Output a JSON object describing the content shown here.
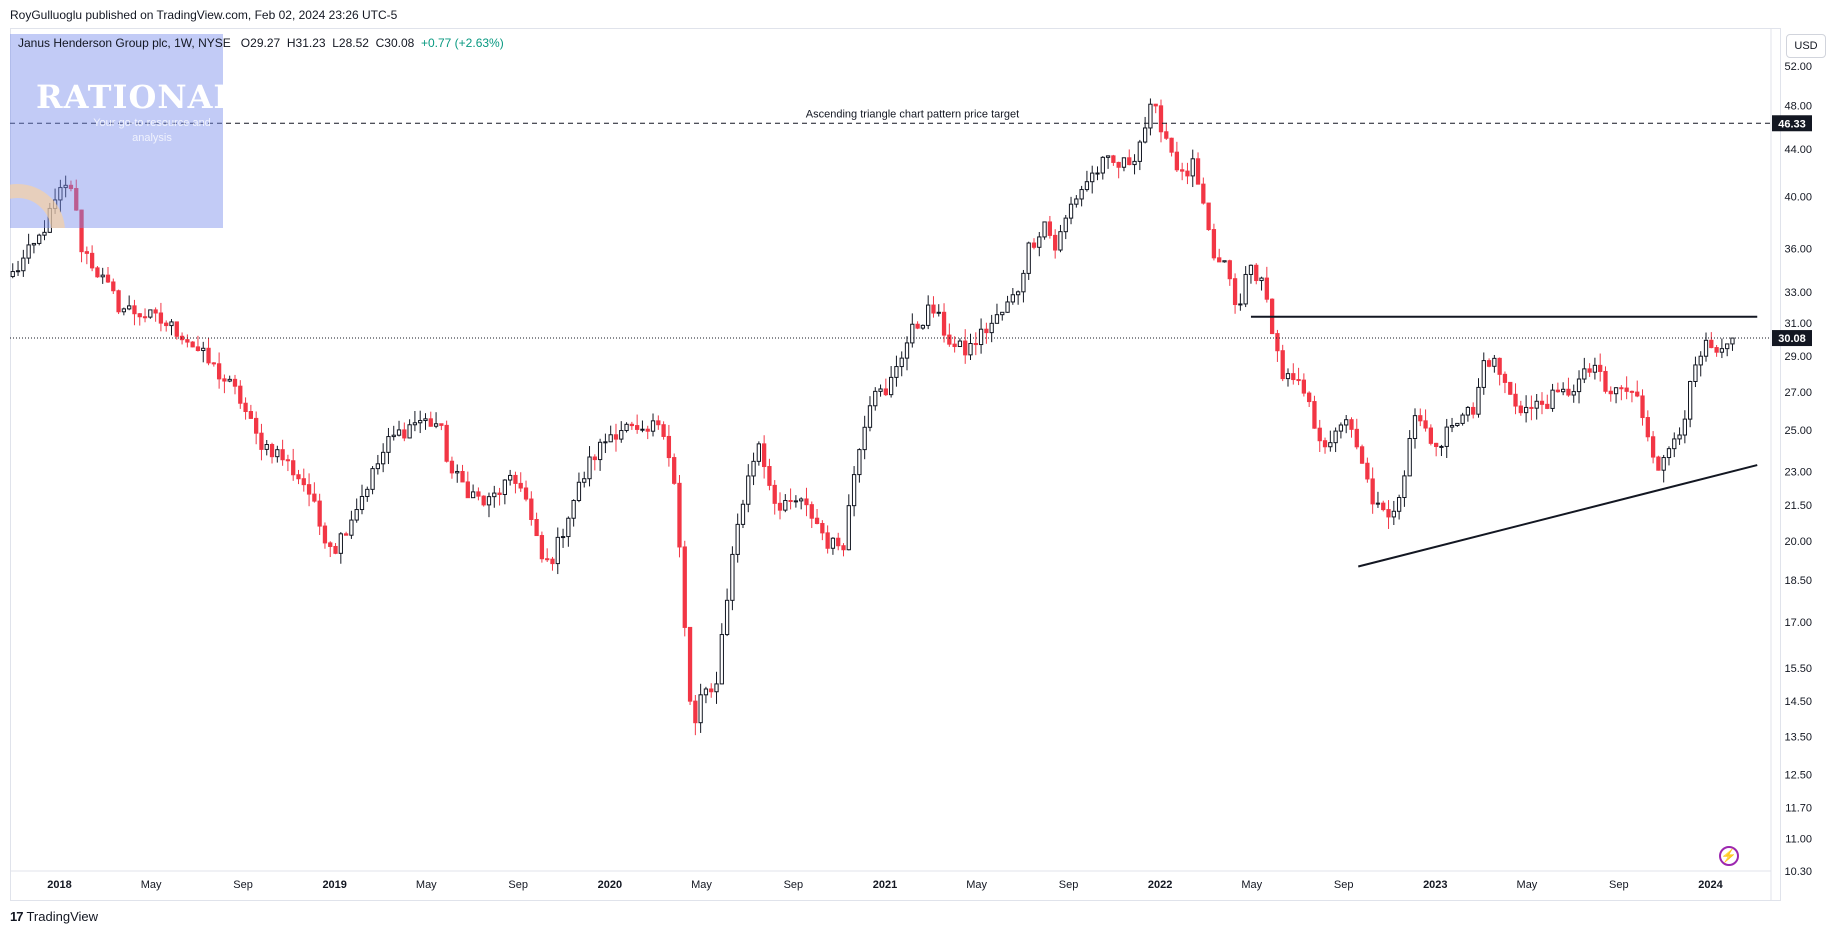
{
  "header": {
    "publisher": "RoyGulluoglu published on TradingView.com, Feb 02, 2024 23:26 UTC-5",
    "symbol": "Janus Henderson Group plc, 1W, NYSE",
    "open_label": "O",
    "open": "29.27",
    "high_label": "H",
    "high": "31.23",
    "low_label": "L",
    "low": "28.52",
    "close_label": "C",
    "close": "30.08",
    "change": "+0.77 (+2.63%)"
  },
  "currency": "USD",
  "logo": {
    "title": "RATIONALE",
    "tagline": "Your go-to resource and analysis"
  },
  "footer": {
    "brand": "TradingView",
    "brand_icon": "tv-logo-icon"
  },
  "colors": {
    "up": "#089981",
    "down": "#f23645",
    "candle_up_body": "#131722",
    "line": "#131722"
  },
  "chart_data": {
    "type": "candlestick",
    "title": "",
    "scale": "log",
    "ylim": [
      10.3,
      56
    ],
    "y_ticks": [
      52,
      48,
      44,
      40,
      36,
      33,
      31,
      29,
      27,
      25,
      23,
      21.5,
      20,
      18.5,
      17,
      15.5,
      14.5,
      13.5,
      12.5,
      11.7,
      11,
      10.3
    ],
    "y_tick_labels": [
      "52.00",
      "48.00",
      "44.00",
      "40.00",
      "36.00",
      "33.00",
      "31.00",
      "29.00",
      "27.00",
      "25.00",
      "23.00",
      "21.50",
      "20.00",
      "18.50",
      "17.00",
      "15.50",
      "14.50",
      "13.50",
      "12.50",
      "11.70",
      "11.00",
      "10.30"
    ],
    "x_ticks": [
      "2018",
      "May",
      "Sep",
      "2019",
      "May",
      "Sep",
      "2020",
      "May",
      "Sep",
      "2021",
      "May",
      "Sep",
      "2022",
      "May",
      "Sep",
      "2023",
      "May",
      "Sep",
      "2024"
    ],
    "x_tick_bold": [
      true,
      false,
      false,
      true,
      false,
      false,
      true,
      false,
      false,
      true,
      false,
      false,
      true,
      false,
      false,
      true,
      false,
      false,
      true
    ],
    "x_tick_t": [
      0.0,
      0.333,
      0.667,
      1.0,
      1.333,
      1.667,
      2.0,
      2.333,
      2.667,
      3.0,
      3.333,
      3.667,
      4.0,
      4.333,
      4.667,
      5.0,
      5.333,
      5.667,
      6.0
    ],
    "x_range_years": [
      -0.18,
      6.22
    ],
    "current_price": 30.08,
    "current_price_label": "30.08",
    "target_price": 46.33,
    "target_price_label": "46.33",
    "annotation": "Ascending triangle chart pattern price target",
    "resistance_line": {
      "t_start": 4.33,
      "t_end": 6.17,
      "price": 31.4
    },
    "support_line": {
      "t_start": 4.72,
      "price_start": 19.0,
      "t_end": 6.17,
      "price_end": 23.3
    },
    "price_path": [
      [
        -0.17,
        34.2
      ],
      [
        -0.08,
        36.5
      ],
      [
        0.0,
        40.2
      ],
      [
        0.05,
        41.0
      ],
      [
        0.07,
        36.5
      ],
      [
        0.15,
        34.0
      ],
      [
        0.22,
        32.0
      ],
      [
        0.3,
        31.6
      ],
      [
        0.38,
        31.0
      ],
      [
        0.45,
        30.3
      ],
      [
        0.55,
        28.5
      ],
      [
        0.65,
        26.8
      ],
      [
        0.72,
        24.5
      ],
      [
        0.8,
        23.8
      ],
      [
        0.9,
        22.3
      ],
      [
        0.95,
        20.5
      ],
      [
        1.0,
        19.7
      ],
      [
        1.06,
        21.0
      ],
      [
        1.13,
        22.7
      ],
      [
        1.2,
        24.5
      ],
      [
        1.3,
        25.5
      ],
      [
        1.38,
        25.3
      ],
      [
        1.42,
        23.0
      ],
      [
        1.5,
        22.0
      ],
      [
        1.55,
        21.5
      ],
      [
        1.62,
        22.4
      ],
      [
        1.68,
        22.5
      ],
      [
        1.72,
        20.5
      ],
      [
        1.76,
        19.0
      ],
      [
        1.8,
        19.5
      ],
      [
        1.86,
        21.5
      ],
      [
        1.93,
        23.5
      ],
      [
        2.0,
        24.8
      ],
      [
        2.05,
        25.2
      ],
      [
        2.12,
        24.6
      ],
      [
        2.18,
        25.5
      ],
      [
        2.2,
        25.0
      ],
      [
        2.24,
        22.0
      ],
      [
        2.27,
        17.0
      ],
      [
        2.3,
        13.5
      ],
      [
        2.33,
        14.6
      ],
      [
        2.38,
        14.7
      ],
      [
        2.42,
        17.5
      ],
      [
        2.46,
        20.5
      ],
      [
        2.5,
        22.5
      ],
      [
        2.54,
        24.5
      ],
      [
        2.58,
        22.5
      ],
      [
        2.62,
        21.2
      ],
      [
        2.68,
        21.7
      ],
      [
        2.74,
        21.0
      ],
      [
        2.8,
        19.8
      ],
      [
        2.85,
        20.0
      ],
      [
        2.9,
        24.0
      ],
      [
        2.96,
        27.5
      ],
      [
        3.0,
        26.5
      ],
      [
        3.04,
        28.5
      ],
      [
        3.1,
        30.5
      ],
      [
        3.17,
        32.0
      ],
      [
        3.2,
        31.0
      ],
      [
        3.25,
        29.5
      ],
      [
        3.3,
        29.3
      ],
      [
        3.36,
        30.5
      ],
      [
        3.42,
        31.5
      ],
      [
        3.48,
        33.0
      ],
      [
        3.52,
        36.0
      ],
      [
        3.58,
        38.0
      ],
      [
        3.62,
        36.0
      ],
      [
        3.68,
        39.5
      ],
      [
        3.74,
        41.5
      ],
      [
        3.8,
        42.8
      ],
      [
        3.86,
        42.5
      ],
      [
        3.9,
        43.2
      ],
      [
        3.93,
        45.0
      ],
      [
        3.97,
        47.8
      ],
      [
        4.0,
        46.5
      ],
      [
        4.04,
        44.0
      ],
      [
        4.08,
        41.5
      ],
      [
        4.12,
        42.5
      ],
      [
        4.16,
        38.5
      ],
      [
        4.2,
        35.0
      ],
      [
        4.25,
        34.5
      ],
      [
        4.28,
        31.0
      ],
      [
        4.32,
        35.0
      ],
      [
        4.36,
        34.0
      ],
      [
        4.4,
        31.5
      ],
      [
        4.44,
        28.0
      ],
      [
        4.48,
        27.5
      ],
      [
        4.52,
        27.0
      ],
      [
        4.57,
        25.0
      ],
      [
        4.62,
        24.0
      ],
      [
        4.67,
        26.0
      ],
      [
        4.7,
        24.5
      ],
      [
        4.74,
        23.0
      ],
      [
        4.78,
        21.5
      ],
      [
        4.83,
        20.8
      ],
      [
        4.88,
        22.5
      ],
      [
        4.92,
        26.0
      ],
      [
        4.97,
        25.0
      ],
      [
        5.02,
        24.0
      ],
      [
        5.06,
        25.5
      ],
      [
        5.1,
        26.0
      ],
      [
        5.14,
        25.8
      ],
      [
        5.18,
        29.0
      ],
      [
        5.22,
        28.5
      ],
      [
        5.28,
        26.5
      ],
      [
        5.34,
        26.0
      ],
      [
        5.4,
        26.5
      ],
      [
        5.46,
        26.8
      ],
      [
        5.52,
        27.5
      ],
      [
        5.58,
        28.5
      ],
      [
        5.62,
        26.8
      ],
      [
        5.68,
        27.2
      ],
      [
        5.74,
        26.5
      ],
      [
        5.78,
        24.5
      ],
      [
        5.82,
        23.0
      ],
      [
        5.86,
        24.5
      ],
      [
        5.9,
        25.5
      ],
      [
        5.94,
        28.0
      ],
      [
        5.98,
        29.5
      ],
      [
        6.02,
        29.0
      ],
      [
        6.06,
        29.2
      ],
      [
        6.08,
        30.08
      ]
    ]
  }
}
